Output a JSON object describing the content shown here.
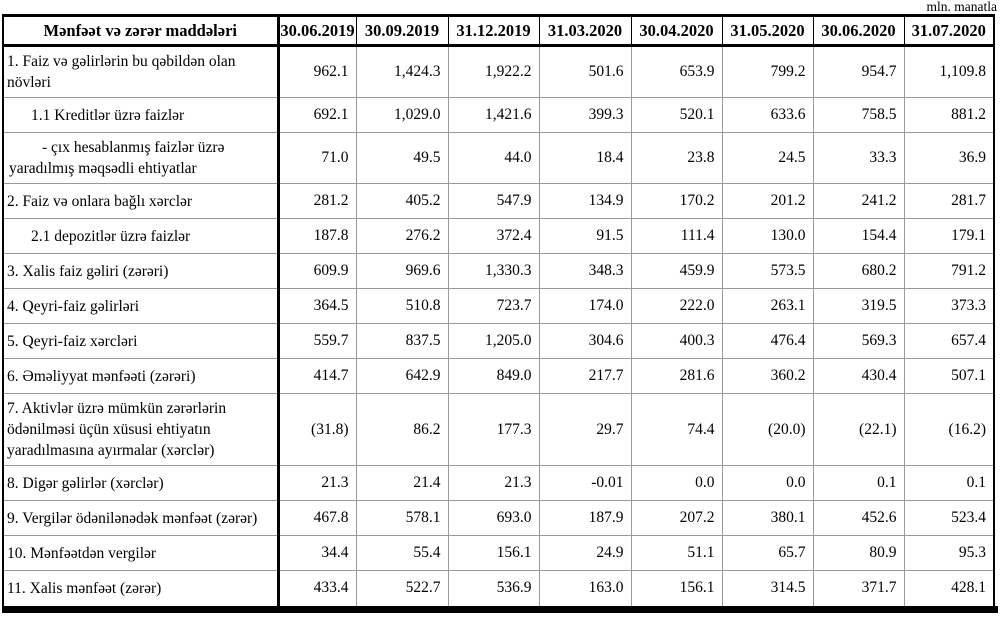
{
  "unit_note": "mln. manatla",
  "colors": {
    "background": "#ffffff",
    "text": "#000000",
    "border": "#000000",
    "grid_line": "#999999"
  },
  "table": {
    "header": {
      "label_col": "Mənfəət və zərər maddələri",
      "date_cols": [
        "30.06.2019",
        "30.09.2019",
        "31.12.2019",
        "31.03.2020",
        "30.04.2020",
        "31.05.2020",
        "30.06.2020",
        "31.07.2020"
      ]
    },
    "rows": [
      {
        "label": "1. Faiz və gəlirlərin bu qəbildən olan növləri",
        "indent": 0,
        "values": [
          "962.1",
          "1,424.3",
          "1,922.2",
          "501.6",
          "653.9",
          "799.2",
          "954.7",
          "1,109.8"
        ]
      },
      {
        "label": "1.1 Kreditlər üzrə faizlər",
        "indent": 1,
        "values": [
          "692.1",
          "1,029.0",
          "1,421.6",
          "399.3",
          "520.1",
          "633.6",
          "758.5",
          "881.2"
        ]
      },
      {
        "label": "- çıx hesablanmış faizlər üzrə yaradılmış məqsədli ehtiyatlar",
        "indent": 3,
        "values": [
          "71.0",
          "49.5",
          "44.0",
          "18.4",
          "23.8",
          "24.5",
          "33.3",
          "36.9"
        ]
      },
      {
        "label": "2. Faiz və onlara bağlı xərclər",
        "indent": 0,
        "values": [
          "281.2",
          "405.2",
          "547.9",
          "134.9",
          "170.2",
          "201.2",
          "241.2",
          "281.7"
        ]
      },
      {
        "label": "2.1 depozitlər üzrə faizlər",
        "indent": 1,
        "values": [
          "187.8",
          "276.2",
          "372.4",
          "91.5",
          "111.4",
          "130.0",
          "154.4",
          "179.1"
        ]
      },
      {
        "label": "3. Xalis faiz gəliri (zərəri)",
        "indent": 0,
        "values": [
          "609.9",
          "969.6",
          "1,330.3",
          "348.3",
          "459.9",
          "573.5",
          "680.2",
          "791.2"
        ]
      },
      {
        "label": "4. Qeyri-faiz gəlirləri",
        "indent": 0,
        "values": [
          "364.5",
          "510.8",
          "723.7",
          "174.0",
          "222.0",
          "263.1",
          "319.5",
          "373.3"
        ]
      },
      {
        "label": "5. Qeyri-faiz xərcləri",
        "indent": 0,
        "values": [
          "559.7",
          "837.5",
          "1,205.0",
          "304.6",
          "400.3",
          "476.4",
          "569.3",
          "657.4"
        ]
      },
      {
        "label": "6. Əməliyyat mənfəəti (zərəri)",
        "indent": 0,
        "values": [
          "414.7",
          "642.9",
          "849.0",
          "217.7",
          "281.6",
          "360.2",
          "430.4",
          "507.1"
        ]
      },
      {
        "label": "7. Aktivlər üzrə mümkün zərərlərin ödənilməsi üçün xüsusi ehtiyatın yaradılmasına ayırmalar (xərclər)",
        "indent": 0,
        "values": [
          "(31.8)",
          "86.2",
          "177.3",
          "29.7",
          "74.4",
          "(20.0)",
          "(22.1)",
          "(16.2)"
        ]
      },
      {
        "label": "8. Digər gəlirlər (xərclər)",
        "indent": 0,
        "values": [
          "21.3",
          "21.4",
          "21.3",
          "-0.01",
          "0.0",
          "0.0",
          "0.1",
          "0.1"
        ]
      },
      {
        "label": "9. Vergilər ödənilənədək mənfəət (zərər)",
        "indent": 0,
        "values": [
          "467.8",
          "578.1",
          "693.0",
          "187.9",
          "207.2",
          "380.1",
          "452.6",
          "523.4"
        ]
      },
      {
        "label": "10. Mənfəətdən vergilər",
        "indent": 0,
        "values": [
          "34.4",
          "55.4",
          "156.1",
          "24.9",
          "51.1",
          "65.7",
          "80.9",
          "95.3"
        ]
      },
      {
        "label": "11. Xalis mənfəət (zərər)",
        "indent": 0,
        "values": [
          "433.4",
          "522.7",
          "536.9",
          "163.0",
          "156.1",
          "314.5",
          "371.7",
          "428.1"
        ]
      }
    ]
  }
}
